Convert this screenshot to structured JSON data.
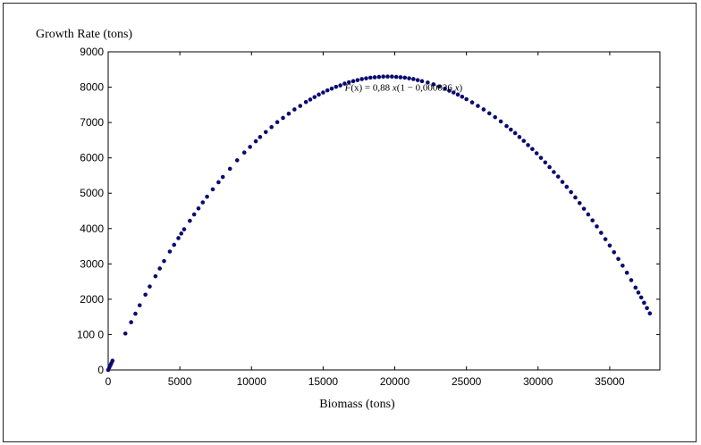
{
  "chart_data": {
    "type": "scatter",
    "title": "",
    "xlabel": "Biomass (tons)",
    "ylabel": "Growth Rate (tons)",
    "xlim": [
      0,
      38500
    ],
    "ylim": [
      0,
      9000
    ],
    "x_ticks": [
      0,
      5000,
      10000,
      15000,
      20000,
      25000,
      30000,
      35000
    ],
    "x_tick_labels": [
      "0",
      "5000",
      "10000",
      "15000",
      "20000",
      "25000",
      "30000",
      "35000"
    ],
    "y_ticks": [
      0,
      1000,
      2000,
      3000,
      4000,
      5000,
      6000,
      7000,
      8000,
      9000
    ],
    "y_tick_labels": [
      "0",
      "100 0",
      "2000",
      "3000",
      "4000",
      "5000",
      "6000",
      "7000",
      "8000",
      "9000"
    ],
    "grid": false,
    "point_color": "#0a0a6e",
    "annotation": {
      "prefix": "F",
      "arg": "(x)",
      "eq": " = 0,88 ",
      "var": "x",
      "paren": "(1 − 0,000026 ",
      "var2": "x",
      "close": ")",
      "x": 24000,
      "y": 8000
    },
    "model": {
      "r": 0.88,
      "k": 2.6e-05
    },
    "series": [
      {
        "x": [
          0,
          80,
          150,
          220,
          300,
          1200,
          1600,
          1900,
          2200,
          2600,
          2900,
          3300,
          3600,
          3900,
          4300,
          4600,
          4900,
          5100,
          5300,
          5700,
          6000,
          6300,
          6600,
          6900,
          7300,
          7700,
          8000,
          8500,
          9000,
          9500,
          9900,
          10300,
          10600,
          11000,
          11400,
          11800,
          12200,
          12600,
          13000,
          13400,
          13800,
          14100,
          14400,
          14700,
          15000,
          15300,
          15600,
          15900,
          16200,
          16500,
          16800,
          17100,
          17400,
          17700,
          18000,
          18300,
          18600,
          18900,
          19200,
          19500,
          19800,
          20100,
          20400,
          20700,
          21000,
          21300,
          21600,
          21900,
          22300,
          22700,
          23100,
          23500,
          23800,
          24100,
          24400,
          24700,
          25000,
          25400,
          25800,
          26200,
          26600,
          27000,
          27400,
          27800,
          28100,
          28400,
          28700,
          29000,
          29300,
          29600,
          29900,
          30200,
          30500,
          30800,
          31100,
          31400,
          31700,
          32000,
          32300,
          32600,
          32900,
          33200,
          33500,
          33800,
          34100,
          34400,
          34700,
          35000,
          35300,
          35600,
          35900,
          36200,
          36500,
          36800,
          37000,
          37200,
          37400,
          37600,
          37800
        ],
        "y": [
          0,
          70,
          130,
          190,
          260,
          1030,
          1350,
          1590,
          1830,
          2130,
          2360,
          2650,
          2870,
          3080,
          3350,
          3540,
          3730,
          3860,
          3980,
          4220,
          4400,
          4570,
          4740,
          4900,
          5110,
          5310,
          5460,
          5690,
          5930,
          6150,
          6310,
          6470,
          6590,
          6730,
          6870,
          7010,
          7130,
          7250,
          7370,
          7470,
          7580,
          7650,
          7720,
          7790,
          7850,
          7910,
          7960,
          8010,
          8050,
          8100,
          8140,
          8170,
          8200,
          8230,
          8250,
          8270,
          8280,
          8290,
          8300,
          8300,
          8300,
          8290,
          8280,
          8270,
          8250,
          8230,
          8200,
          8170,
          8130,
          8080,
          8020,
          7960,
          7900,
          7850,
          7790,
          7730,
          7660,
          7570,
          7470,
          7370,
          7260,
          7150,
          7030,
          6900,
          6800,
          6700,
          6590,
          6480,
          6360,
          6250,
          6130,
          6000,
          5870,
          5740,
          5600,
          5470,
          5320,
          5180,
          5030,
          4880,
          4720,
          4560,
          4400,
          4230,
          4060,
          3880,
          3700,
          3520,
          3330,
          3140,
          2950,
          2750,
          2540,
          2330,
          2190,
          2050,
          1900,
          1750,
          1600
        ]
      }
    ]
  }
}
